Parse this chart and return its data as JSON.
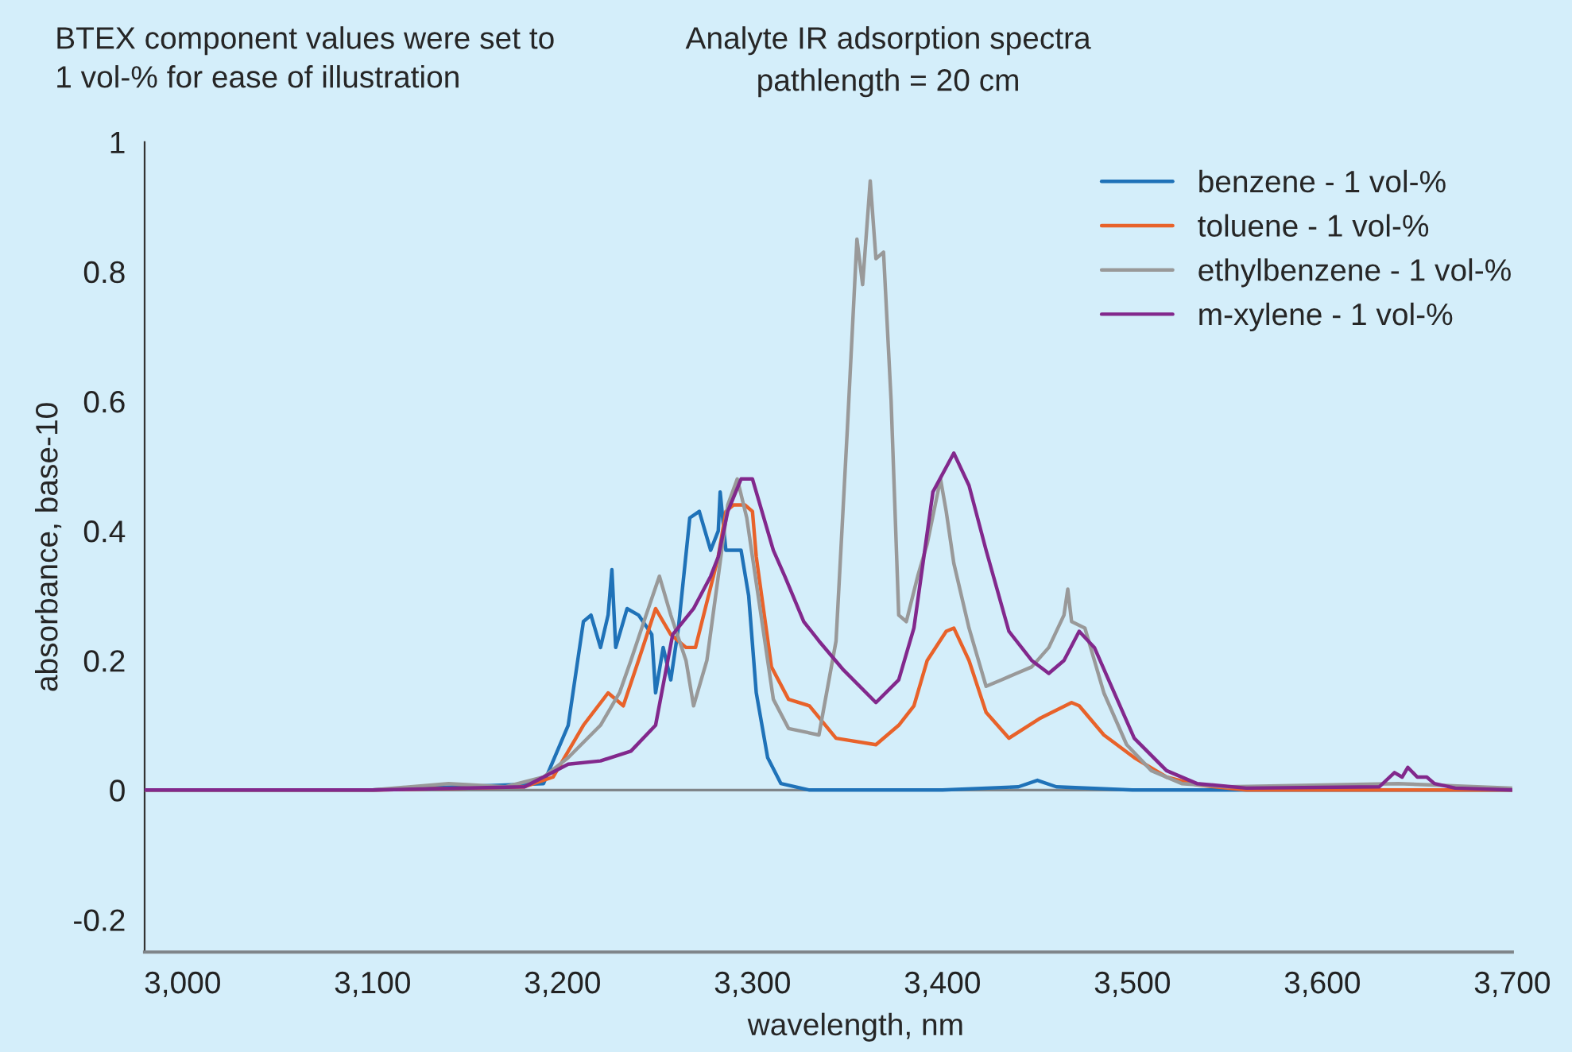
{
  "chart_data": {
    "type": "line",
    "title": "Analyte IR adsorption spectra",
    "subtitle": "pathlength = 20 cm",
    "xlabel": "wavelength, nm",
    "ylabel": "absorbance, base-10",
    "annotations": [
      "BTEX component values were set to\n1 vol-% for ease of illustration"
    ],
    "xlim": [
      2980,
      3700
    ],
    "ylim": [
      -0.25,
      1
    ],
    "xticks": [
      {
        "value": 3000,
        "label": "3,000"
      },
      {
        "value": 3100,
        "label": "3,100"
      },
      {
        "value": 3200,
        "label": "3,200"
      },
      {
        "value": 3300,
        "label": "3,300"
      },
      {
        "value": 3400,
        "label": "3,400"
      },
      {
        "value": 3500,
        "label": "3,500"
      },
      {
        "value": 3600,
        "label": "3,600"
      },
      {
        "value": 3700,
        "label": "3,700"
      }
    ],
    "yticks": [
      -0.2,
      0,
      0.2,
      0.4,
      0.6,
      0.8,
      1
    ],
    "ref_lines": [
      {
        "axis": "y",
        "value": 0,
        "color": "#7f8589"
      }
    ],
    "legend": "top right",
    "grid": false,
    "marker": "none",
    "line_style": "solid",
    "series": [
      {
        "name": "benzene - 1 vol-%",
        "color": "#1f72b8",
        "x": [
          2980,
          3100,
          3190,
          3203,
          3211,
          3215,
          3220,
          3224,
          3226,
          3228,
          3234,
          3240,
          3247,
          3249,
          3253,
          3257,
          3261,
          3267,
          3272,
          3278,
          3282,
          3283,
          3286,
          3290,
          3294,
          3298,
          3302,
          3308,
          3315,
          3330,
          3400,
          3440,
          3450,
          3460,
          3500,
          3600,
          3700
        ],
        "values": [
          0,
          0,
          0.01,
          0.1,
          0.26,
          0.27,
          0.22,
          0.27,
          0.34,
          0.22,
          0.28,
          0.27,
          0.24,
          0.15,
          0.22,
          0.17,
          0.25,
          0.42,
          0.43,
          0.37,
          0.4,
          0.46,
          0.37,
          0.37,
          0.37,
          0.3,
          0.15,
          0.05,
          0.01,
          0,
          0,
          0.005,
          0.015,
          0.005,
          0,
          0,
          0
        ]
      },
      {
        "name": "toluene - 1 vol-%",
        "color": "#e8622a",
        "x": [
          2980,
          3100,
          3180,
          3195,
          3211,
          3224,
          3232,
          3240,
          3249,
          3253,
          3257,
          3265,
          3270,
          3282,
          3286,
          3290,
          3296,
          3300,
          3302,
          3310,
          3319,
          3330,
          3344,
          3365,
          3377,
          3385,
          3392,
          3402,
          3406,
          3414,
          3423,
          3435,
          3451,
          3468,
          3472,
          3485,
          3501,
          3518,
          3534,
          3560,
          3700
        ],
        "values": [
          0,
          0,
          0.005,
          0.02,
          0.1,
          0.15,
          0.13,
          0.2,
          0.28,
          0.26,
          0.24,
          0.22,
          0.22,
          0.36,
          0.43,
          0.44,
          0.44,
          0.43,
          0.36,
          0.19,
          0.14,
          0.13,
          0.08,
          0.07,
          0.1,
          0.13,
          0.2,
          0.245,
          0.25,
          0.2,
          0.12,
          0.08,
          0.11,
          0.135,
          0.13,
          0.085,
          0.05,
          0.02,
          0.008,
          0,
          0
        ]
      },
      {
        "name": "ethylbenzene - 1 vol-%",
        "color": "#999999",
        "x": [
          2980,
          3100,
          3140,
          3170,
          3190,
          3203,
          3220,
          3230,
          3236,
          3244,
          3251,
          3257,
          3265,
          3269,
          3276,
          3282,
          3287,
          3292,
          3297,
          3302,
          3311,
          3319,
          3327,
          3335,
          3344,
          3350,
          3355,
          3358,
          3362,
          3365,
          3369,
          3373,
          3377,
          3381,
          3387,
          3392,
          3399,
          3402,
          3406,
          3414,
          3423,
          3431,
          3439,
          3447,
          3456,
          3464,
          3466,
          3468,
          3475,
          3485,
          3497,
          3510,
          3526,
          3550,
          3640,
          3700
        ],
        "values": [
          0,
          0,
          0.01,
          0.005,
          0.02,
          0.05,
          0.1,
          0.15,
          0.2,
          0.27,
          0.33,
          0.27,
          0.2,
          0.13,
          0.2,
          0.33,
          0.44,
          0.48,
          0.42,
          0.32,
          0.14,
          0.095,
          0.09,
          0.085,
          0.23,
          0.56,
          0.85,
          0.78,
          0.94,
          0.82,
          0.83,
          0.6,
          0.27,
          0.26,
          0.33,
          0.38,
          0.48,
          0.43,
          0.35,
          0.25,
          0.16,
          0.17,
          0.18,
          0.19,
          0.22,
          0.27,
          0.31,
          0.26,
          0.25,
          0.15,
          0.07,
          0.03,
          0.01,
          0.005,
          0.01,
          0.003
        ]
      },
      {
        "name": "m-xylene - 1 vol-%",
        "color": "#82288c",
        "x": [
          2980,
          3100,
          3180,
          3190,
          3203,
          3220,
          3236,
          3249,
          3258,
          3269,
          3278,
          3282,
          3287,
          3294,
          3300,
          3311,
          3317,
          3327,
          3335,
          3348,
          3365,
          3377,
          3385,
          3395,
          3406,
          3414,
          3423,
          3435,
          3447,
          3456,
          3464,
          3472,
          3480,
          3489,
          3501,
          3518,
          3534,
          3560,
          3630,
          3638,
          3642,
          3645,
          3650,
          3655,
          3659,
          3670,
          3700
        ],
        "values": [
          0,
          0,
          0.005,
          0.02,
          0.04,
          0.045,
          0.06,
          0.1,
          0.24,
          0.28,
          0.33,
          0.36,
          0.43,
          0.48,
          0.48,
          0.37,
          0.33,
          0.26,
          0.23,
          0.185,
          0.135,
          0.17,
          0.25,
          0.46,
          0.52,
          0.47,
          0.37,
          0.245,
          0.2,
          0.18,
          0.2,
          0.245,
          0.22,
          0.16,
          0.08,
          0.03,
          0.01,
          0.003,
          0.005,
          0.027,
          0.02,
          0.035,
          0.02,
          0.02,
          0.01,
          0.003,
          0
        ]
      }
    ]
  }
}
